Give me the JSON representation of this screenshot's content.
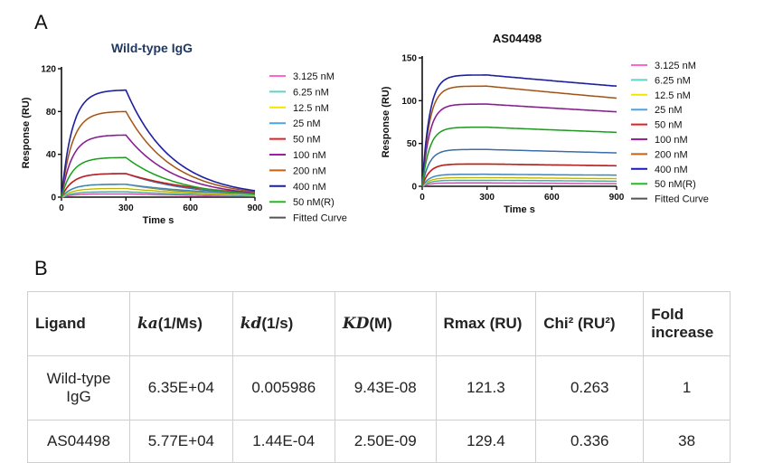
{
  "panel_labels": {
    "a": "A",
    "b": "B"
  },
  "chart_data": [
    {
      "type": "line",
      "title": "Wild-type IgG",
      "xlabel": "Time s",
      "ylabel": "Response (RU)",
      "xlim": [
        0,
        900
      ],
      "ylim": [
        0,
        120
      ],
      "xticks": [
        0,
        300,
        600,
        900
      ],
      "yticks": [
        0,
        40,
        80,
        120
      ],
      "legend_position": "right",
      "association_end": 300,
      "series": [
        {
          "name": "3.125 nM",
          "color": "#ff66cc",
          "plateau": 3,
          "end": 1
        },
        {
          "name": "6.25 nM",
          "color": "#5fd3c7",
          "plateau": 5,
          "end": 1.5
        },
        {
          "name": "12.5 nM",
          "color": "#f2e600",
          "plateau": 8,
          "end": 2
        },
        {
          "name": "25 nM",
          "color": "#4fa3e0",
          "plateau": 12,
          "end": 3
        },
        {
          "name": "50 nM",
          "color": "#e02020",
          "plateau": 22,
          "end": 4
        },
        {
          "name": "100 nM",
          "color": "#9b1fa5",
          "plateau": 58,
          "end": 4
        },
        {
          "name": "200 nM",
          "color": "#c0641c",
          "plateau": 80,
          "end": 5
        },
        {
          "name": "400 nM",
          "color": "#1a1ab5",
          "plateau": 100,
          "end": 6
        },
        {
          "name": "50 nM(R)",
          "color": "#22bb22",
          "plateau": 37,
          "end": 3
        },
        {
          "name": "Fitted Curve",
          "color": "#555555"
        }
      ],
      "extra_curves": [
        {
          "color": "#3b6ea5",
          "plateau": 22,
          "end": 3
        },
        {
          "color": "#8a8a3a",
          "plateau": 12,
          "end": 2
        }
      ]
    },
    {
      "type": "line",
      "title": "AS04498",
      "xlabel": "Time s",
      "ylabel": "Response (RU)",
      "xlim": [
        0,
        900
      ],
      "ylim": [
        0,
        150
      ],
      "xticks": [
        0,
        300,
        600,
        900
      ],
      "yticks": [
        0,
        50,
        100,
        150
      ],
      "legend_position": "right",
      "association_end": 300,
      "series": [
        {
          "name": "3.125 nM",
          "color": "#ff66cc",
          "plateau": 4,
          "end": 3
        },
        {
          "name": "6.25 nM",
          "color": "#5fd3c7",
          "plateau": 7,
          "end": 6
        },
        {
          "name": "12.5 nM",
          "color": "#f2e600",
          "plateau": 10,
          "end": 9
        },
        {
          "name": "25 nM",
          "color": "#4fa3e0",
          "plateau": 14,
          "end": 13
        },
        {
          "name": "50 nM",
          "color": "#e02020",
          "plateau": 26,
          "end": 24
        },
        {
          "name": "100 nM",
          "color": "#9b1fa5",
          "plateau": 96,
          "end": 87
        },
        {
          "name": "200 nM",
          "color": "#c0641c",
          "plateau": 117,
          "end": 103
        },
        {
          "name": "400 nM",
          "color": "#1a1ab5",
          "plateau": 130,
          "end": 117
        },
        {
          "name": "50 nM(R)",
          "color": "#22bb22",
          "plateau": 69,
          "end": 63
        },
        {
          "name": "Fitted Curve",
          "color": "#555555"
        }
      ],
      "extra_curves": [
        {
          "color": "#3b6ea5",
          "plateau": 43,
          "end": 39
        },
        {
          "color": "#8a8a3a",
          "plateau": 26,
          "end": 24
        }
      ]
    }
  ],
  "table": {
    "headers": [
      {
        "sym": "ka",
        "text": "(1/Ms)"
      },
      {
        "sym": "kd",
        "text": "(1/s)"
      },
      {
        "sym": "KD",
        "text": "(M)"
      }
    ],
    "header_ligand": "Ligand",
    "header_rmax": "Rmax (RU)",
    "header_chi": "Chi² (RU²)",
    "header_fold": "Fold increase",
    "rows": [
      {
        "ligand": "Wild-type IgG",
        "ka": "6.35E+04",
        "kd": "0.005986",
        "KD": "9.43E-08",
        "rmax": "121.3",
        "chi": "0.263",
        "fold": "1"
      },
      {
        "ligand": "AS04498",
        "ka": "5.77E+04",
        "kd": "1.44E-04",
        "KD": "2.50E-09",
        "rmax": "129.4",
        "chi": "0.336",
        "fold": "38"
      }
    ]
  }
}
